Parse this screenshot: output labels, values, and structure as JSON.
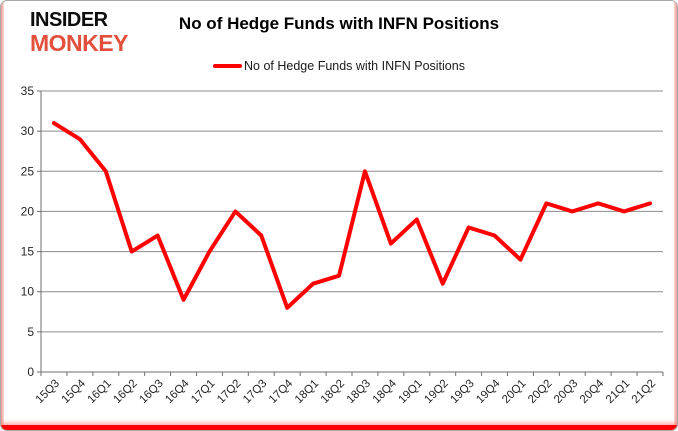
{
  "logo": {
    "line1": "INSIDER",
    "line2": "MONKEY"
  },
  "header": {
    "title": "No of Hedge Funds with INFN Positions"
  },
  "legend": {
    "label": "No of Hedge Funds with INFN Positions",
    "color": "#ff0000"
  },
  "colors": {
    "series_red": "#ff0000",
    "gridline_gray": "#8c8c8c",
    "axis_gray": "#6e6e6e",
    "tick_label": "#262626",
    "logo_red": "#e2503c",
    "frame_bottom_red": "#ff0000",
    "frame_side_pink": "#ee9a92"
  },
  "chart_data": {
    "type": "line",
    "title": "No of Hedge Funds with INFN Positions",
    "categories": [
      "15Q3",
      "15Q4",
      "16Q1",
      "16Q2",
      "16Q3",
      "16Q4",
      "17Q1",
      "17Q2",
      "17Q3",
      "17Q4",
      "18Q1",
      "18Q2",
      "18Q3",
      "18Q4",
      "19Q1",
      "19Q2",
      "19Q3",
      "19Q4",
      "20Q1",
      "20Q2",
      "20Q3",
      "20Q4",
      "21Q1",
      "21Q2"
    ],
    "series": [
      {
        "name": "No of Hedge Funds with INFN Positions",
        "color": "#ff0000",
        "values": [
          31,
          29,
          25,
          15,
          17,
          9,
          15,
          20,
          17,
          8,
          11,
          12,
          25,
          16,
          19,
          11,
          18,
          17,
          14,
          21,
          20,
          21,
          20,
          21
        ]
      }
    ],
    "xlabel": "",
    "ylabel": "",
    "ylim": [
      0,
      35
    ],
    "yticks": [
      0,
      5,
      10,
      15,
      20,
      25,
      30,
      35
    ],
    "grid": true,
    "legend_position": "top",
    "x_tick_label_rotation_deg": -45
  }
}
